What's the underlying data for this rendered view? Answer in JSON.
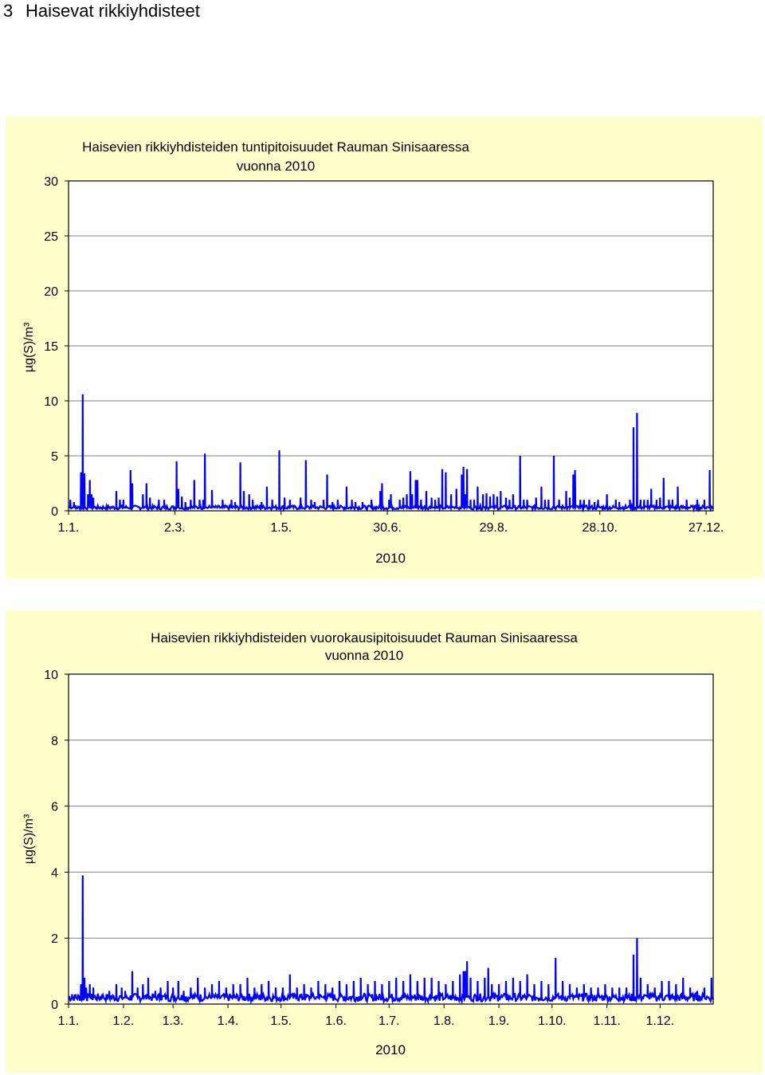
{
  "page": {
    "section_number": "3",
    "section_title": "Haisevat rikkiyhdisteet"
  },
  "chart_data": [
    {
      "type": "line",
      "title_line1": "Haisevien rikkiyhdisteiden tuntipitoisuudet Rauman Sinisaaressa",
      "title_line2": "vuonna 2010",
      "xlabel": "2010",
      "ylabel": "µg(S)/m³",
      "ylim": [
        0,
        30
      ],
      "yticks": [
        0,
        5,
        10,
        15,
        20,
        25,
        30
      ],
      "xlim": [
        1,
        365
      ],
      "xticks": [
        {
          "day": 1,
          "label": "1.1."
        },
        {
          "day": 61,
          "label": "2.3."
        },
        {
          "day": 121,
          "label": "1.5."
        },
        {
          "day": 181,
          "label": "30.6."
        },
        {
          "day": 241,
          "label": "29.8."
        },
        {
          "day": 301,
          "label": "28.10."
        },
        {
          "day": 361,
          "label": "27.12."
        }
      ],
      "grid": true,
      "series_color": "#0000ff",
      "baseline": 0.3,
      "spikes": [
        [
          2,
          1.0
        ],
        [
          4,
          0.8
        ],
        [
          5,
          0.5
        ],
        [
          8,
          3.5
        ],
        [
          9,
          10.6
        ],
        [
          10,
          3.4
        ],
        [
          12,
          1.5
        ],
        [
          13,
          2.8
        ],
        [
          14,
          1.5
        ],
        [
          15,
          1.2
        ],
        [
          28,
          1.8
        ],
        [
          30,
          1.0
        ],
        [
          32,
          1.0
        ],
        [
          36,
          3.7
        ],
        [
          37,
          2.5
        ],
        [
          43,
          1.5
        ],
        [
          45,
          2.5
        ],
        [
          47,
          1.2
        ],
        [
          52,
          1.0
        ],
        [
          55,
          1.0
        ],
        [
          62,
          4.5
        ],
        [
          63,
          2.0
        ],
        [
          65,
          1.3
        ],
        [
          67,
          0.8
        ],
        [
          70,
          1.0
        ],
        [
          72,
          2.8
        ],
        [
          75,
          1.0
        ],
        [
          77,
          1.0
        ],
        [
          78,
          5.2
        ],
        [
          82,
          1.9
        ],
        [
          88,
          1.0
        ],
        [
          93,
          1.0
        ],
        [
          95,
          0.8
        ],
        [
          98,
          4.4
        ],
        [
          100,
          1.8
        ],
        [
          103,
          1.5
        ],
        [
          105,
          1.0
        ],
        [
          110,
          0.8
        ],
        [
          113,
          2.2
        ],
        [
          116,
          1.0
        ],
        [
          120,
          5.5
        ],
        [
          123,
          1.2
        ],
        [
          126,
          1.0
        ],
        [
          132,
          1.2
        ],
        [
          135,
          4.6
        ],
        [
          138,
          1.0
        ],
        [
          140,
          0.8
        ],
        [
          145,
          1.0
        ],
        [
          147,
          3.3
        ],
        [
          150,
          0.8
        ],
        [
          153,
          1.0
        ],
        [
          158,
          2.2
        ],
        [
          161,
          1.0
        ],
        [
          163,
          0.8
        ],
        [
          167,
          0.8
        ],
        [
          172,
          1.0
        ],
        [
          177,
          1.8
        ],
        [
          178,
          2.5
        ],
        [
          182,
          1.0
        ],
        [
          183,
          1.5
        ],
        [
          188,
          1.0
        ],
        [
          190,
          1.2
        ],
        [
          192,
          1.5
        ],
        [
          194,
          3.6
        ],
        [
          195,
          1.5
        ],
        [
          197,
          2.8
        ],
        [
          198,
          2.8
        ],
        [
          200,
          1.0
        ],
        [
          203,
          1.8
        ],
        [
          206,
          1.2
        ],
        [
          208,
          1.0
        ],
        [
          210,
          1.2
        ],
        [
          212,
          3.8
        ],
        [
          214,
          3.5
        ],
        [
          217,
          1.5
        ],
        [
          220,
          2.0
        ],
        [
          223,
          3.3
        ],
        [
          224,
          4.0
        ],
        [
          225,
          1.5
        ],
        [
          226,
          3.8
        ],
        [
          228,
          1.0
        ],
        [
          230,
          1.0
        ],
        [
          232,
          2.2
        ],
        [
          235,
          1.5
        ],
        [
          237,
          1.6
        ],
        [
          239,
          1.3
        ],
        [
          241,
          1.5
        ],
        [
          243,
          1.3
        ],
        [
          245,
          1.8
        ],
        [
          248,
          1.2
        ],
        [
          250,
          1.0
        ],
        [
          252,
          1.5
        ],
        [
          256,
          5.0
        ],
        [
          258,
          1.0
        ],
        [
          260,
          1.0
        ],
        [
          265,
          1.2
        ],
        [
          268,
          2.2
        ],
        [
          270,
          1.0
        ],
        [
          272,
          1.0
        ],
        [
          275,
          5.0
        ],
        [
          278,
          1.0
        ],
        [
          282,
          1.8
        ],
        [
          284,
          1.2
        ],
        [
          286,
          3.3
        ],
        [
          287,
          3.7
        ],
        [
          290,
          1.0
        ],
        [
          292,
          1.0
        ],
        [
          295,
          1.0
        ],
        [
          298,
          0.8
        ],
        [
          300,
          1.0
        ],
        [
          305,
          1.5
        ],
        [
          310,
          1.0
        ],
        [
          312,
          0.8
        ],
        [
          318,
          1.0
        ],
        [
          320,
          7.6
        ],
        [
          322,
          8.9
        ],
        [
          324,
          1.0
        ],
        [
          326,
          1.0
        ],
        [
          328,
          1.0
        ],
        [
          330,
          2.0
        ],
        [
          333,
          1.0
        ],
        [
          335,
          1.2
        ],
        [
          337,
          3.0
        ],
        [
          340,
          1.0
        ],
        [
          342,
          1.0
        ],
        [
          345,
          2.2
        ],
        [
          350,
          1.0
        ],
        [
          356,
          1.0
        ],
        [
          360,
          1.0
        ],
        [
          363,
          3.7
        ]
      ]
    },
    {
      "type": "line",
      "title_line1": "Haisevien rikkiyhdisteiden vuorokausipitoisuudet Rauman Sinisaaressa",
      "title_line2": "vuonna 2010",
      "xlabel": "2010",
      "ylabel": "µg(S)/m³",
      "ylim": [
        0,
        10
      ],
      "yticks": [
        0,
        2,
        4,
        6,
        8,
        10
      ],
      "xlim": [
        1,
        365
      ],
      "xticks": [
        {
          "day": 1,
          "label": "1.1."
        },
        {
          "day": 32,
          "label": "1.2."
        },
        {
          "day": 60,
          "label": "1.3."
        },
        {
          "day": 91,
          "label": "1.4."
        },
        {
          "day": 121,
          "label": "1.5."
        },
        {
          "day": 152,
          "label": "1.6."
        },
        {
          "day": 182,
          "label": "1.7."
        },
        {
          "day": 213,
          "label": "1.8."
        },
        {
          "day": 244,
          "label": "1.9."
        },
        {
          "day": 274,
          "label": "1.10."
        },
        {
          "day": 305,
          "label": "1.11."
        },
        {
          "day": 335,
          "label": "1.12."
        }
      ],
      "grid": true,
      "series_color": "#0000ff",
      "baseline": 0.2,
      "spikes": [
        [
          3,
          0.3
        ],
        [
          5,
          0.3
        ],
        [
          8,
          0.6
        ],
        [
          9,
          3.9
        ],
        [
          10,
          0.8
        ],
        [
          11,
          0.5
        ],
        [
          13,
          0.6
        ],
        [
          15,
          0.5
        ],
        [
          20,
          0.3
        ],
        [
          24,
          0.4
        ],
        [
          28,
          0.6
        ],
        [
          31,
          0.5
        ],
        [
          33,
          0.4
        ],
        [
          37,
          1.0
        ],
        [
          40,
          0.5
        ],
        [
          43,
          0.6
        ],
        [
          46,
          0.8
        ],
        [
          50,
          0.4
        ],
        [
          53,
          0.5
        ],
        [
          57,
          0.7
        ],
        [
          60,
          0.5
        ],
        [
          63,
          0.7
        ],
        [
          66,
          0.4
        ],
        [
          70,
          0.5
        ],
        [
          74,
          0.8
        ],
        [
          78,
          0.5
        ],
        [
          82,
          0.6
        ],
        [
          86,
          0.7
        ],
        [
          90,
          0.5
        ],
        [
          94,
          0.6
        ],
        [
          98,
          0.6
        ],
        [
          102,
          0.8
        ],
        [
          106,
          0.5
        ],
        [
          110,
          0.6
        ],
        [
          114,
          0.7
        ],
        [
          118,
          0.5
        ],
        [
          122,
          0.5
        ],
        [
          126,
          0.9
        ],
        [
          130,
          0.5
        ],
        [
          134,
          0.6
        ],
        [
          138,
          0.5
        ],
        [
          142,
          0.7
        ],
        [
          146,
          0.6
        ],
        [
          150,
          0.5
        ],
        [
          154,
          0.7
        ],
        [
          158,
          0.6
        ],
        [
          162,
          0.7
        ],
        [
          166,
          0.8
        ],
        [
          170,
          0.6
        ],
        [
          174,
          0.7
        ],
        [
          178,
          0.6
        ],
        [
          182,
          0.7
        ],
        [
          186,
          0.8
        ],
        [
          190,
          0.7
        ],
        [
          194,
          0.9
        ],
        [
          198,
          0.7
        ],
        [
          202,
          0.8
        ],
        [
          206,
          0.8
        ],
        [
          210,
          0.7
        ],
        [
          214,
          0.6
        ],
        [
          218,
          0.7
        ],
        [
          222,
          0.9
        ],
        [
          224,
          1.0
        ],
        [
          225,
          1.0
        ],
        [
          226,
          1.3
        ],
        [
          228,
          0.8
        ],
        [
          232,
          0.7
        ],
        [
          236,
          0.8
        ],
        [
          238,
          1.1
        ],
        [
          240,
          0.6
        ],
        [
          244,
          0.6
        ],
        [
          248,
          0.7
        ],
        [
          252,
          0.8
        ],
        [
          256,
          0.7
        ],
        [
          260,
          0.9
        ],
        [
          264,
          0.6
        ],
        [
          268,
          0.7
        ],
        [
          272,
          0.6
        ],
        [
          276,
          1.4
        ],
        [
          280,
          0.7
        ],
        [
          284,
          0.6
        ],
        [
          288,
          0.5
        ],
        [
          292,
          0.6
        ],
        [
          296,
          0.5
        ],
        [
          300,
          0.5
        ],
        [
          304,
          0.6
        ],
        [
          308,
          0.5
        ],
        [
          312,
          0.5
        ],
        [
          316,
          0.5
        ],
        [
          320,
          1.5
        ],
        [
          322,
          2.0
        ],
        [
          324,
          0.8
        ],
        [
          328,
          0.6
        ],
        [
          332,
          0.5
        ],
        [
          336,
          0.7
        ],
        [
          340,
          0.7
        ],
        [
          344,
          0.6
        ],
        [
          348,
          0.8
        ],
        [
          352,
          0.5
        ],
        [
          356,
          0.4
        ],
        [
          360,
          0.5
        ],
        [
          364,
          0.8
        ]
      ]
    }
  ]
}
